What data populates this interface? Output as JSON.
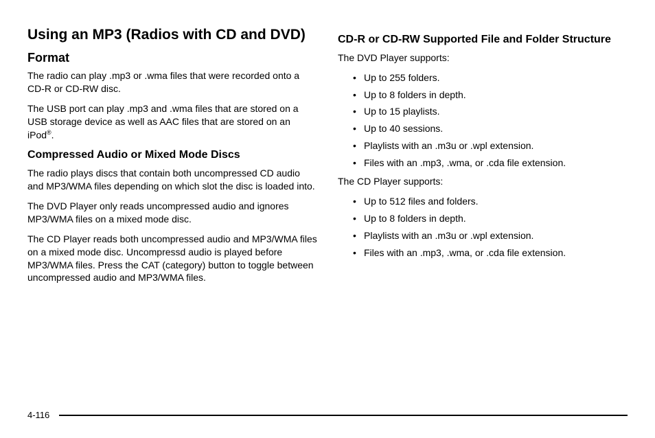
{
  "left": {
    "title": "Using an MP3 (Radios with CD and DVD)",
    "h_format": "Format",
    "p_format_1a": "The radio can play .mp3 or .wma files that were recorded onto a CD-R or CD-RW disc.",
    "p_format_2a": "The USB port can play .mp3 and .wma files that are stored on a USB storage device as well as AAC files that are stored on an iPod",
    "p_format_2b": ".",
    "reg": "®",
    "h_compressed": "Compressed Audio or Mixed Mode Discs",
    "p_comp_1": "The radio plays discs that contain both uncompressed CD audio and MP3/WMA files depending on which slot the disc is loaded into.",
    "p_comp_2": "The DVD Player only reads uncompressed audio and ignores MP3/WMA files on a mixed mode disc.",
    "p_comp_3": "The CD Player reads both uncompressed audio and MP3/WMA files on a mixed mode disc. Uncompressd audio is played before MP3/WMA files. Press the CAT (category) button to toggle between uncompressed audio and MP3/WMA files."
  },
  "right": {
    "h_structure": "CD-R or CD-RW Supported File and Folder Structure",
    "p_dvd": "The DVD Player supports:",
    "dvd_items": [
      "Up to 255 folders.",
      "Up to 8 folders in depth.",
      "Up to 15 playlists.",
      "Up to 40 sessions.",
      "Playlists with an .m3u or .wpl extension.",
      "Files with an .mp3, .wma, or .cda file extension."
    ],
    "p_cd": "The CD Player supports:",
    "cd_items": [
      "Up to 512 files and folders.",
      "Up to 8 folders in depth.",
      "Playlists with an .m3u or .wpl extension.",
      "Files with an .mp3, .wma, or .cda file extension."
    ]
  },
  "page_number": "4-116"
}
